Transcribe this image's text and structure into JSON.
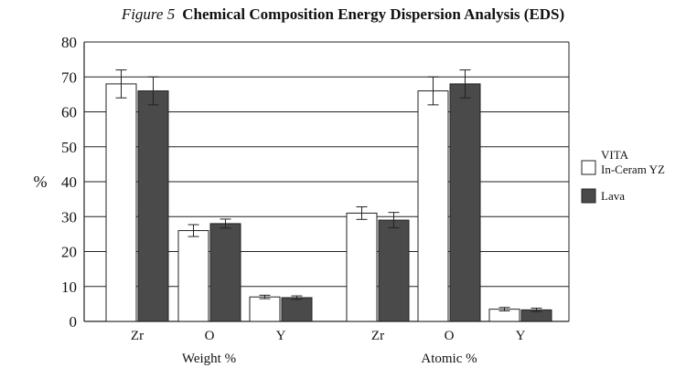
{
  "figure_label": "Figure 5",
  "chart_data": {
    "type": "bar",
    "title": "Chemical Composition Energy Dispersion Analysis (EDS)",
    "ylabel": "%",
    "ylim": [
      0,
      80
    ],
    "yticks": [
      0,
      10,
      20,
      30,
      40,
      50,
      60,
      70,
      80
    ],
    "grid": true,
    "legend_position": "right",
    "groups": [
      {
        "label": "Weight %",
        "categories": [
          "Zr",
          "O",
          "Y"
        ]
      },
      {
        "label": "Atomic %",
        "categories": [
          "Zr",
          "O",
          "Y"
        ]
      }
    ],
    "series": [
      {
        "name": "VITA In-Ceram YZ",
        "legend_lines": [
          "VITA",
          "In-Ceram YZ"
        ],
        "color": "#ffffff",
        "values": [
          68,
          26,
          7,
          31,
          66,
          3.5
        ],
        "errors": [
          4,
          1.7,
          0.5,
          1.8,
          4,
          0.5
        ]
      },
      {
        "name": "Lava",
        "legend_lines": [
          "Lava"
        ],
        "color": "#4a4a4a",
        "values": [
          66,
          28,
          6.8,
          29,
          68,
          3.3
        ],
        "errors": [
          4,
          1.3,
          0.5,
          2.2,
          4,
          0.5
        ]
      }
    ]
  }
}
